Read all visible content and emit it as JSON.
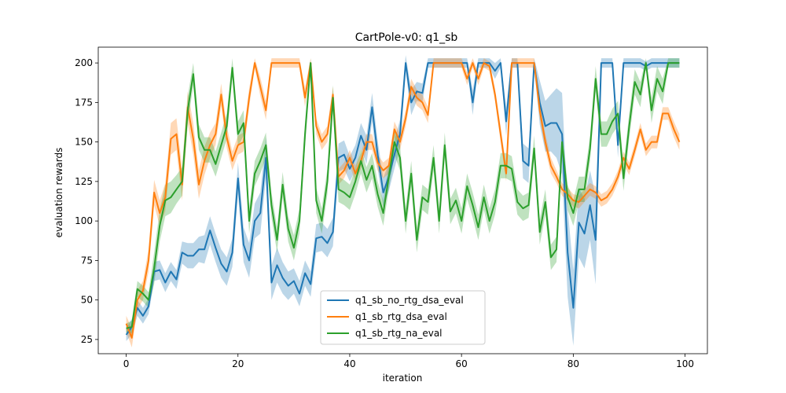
{
  "chart_data": {
    "type": "line",
    "title": "CartPole-v0: q1_sb",
    "xlabel": "iteration",
    "ylabel": "evaluation rewards",
    "xlim": [
      -5,
      104
    ],
    "ylim": [
      16,
      210
    ],
    "xticks": [
      0,
      20,
      40,
      60,
      80,
      100
    ],
    "yticks": [
      25,
      50,
      75,
      100,
      125,
      150,
      175,
      200
    ],
    "grid": false,
    "legend_position": "lower-center",
    "x": [
      0,
      1,
      2,
      3,
      4,
      5,
      6,
      7,
      8,
      9,
      10,
      11,
      12,
      13,
      14,
      15,
      16,
      17,
      18,
      19,
      20,
      21,
      22,
      23,
      24,
      25,
      26,
      27,
      28,
      29,
      30,
      31,
      32,
      33,
      34,
      35,
      36,
      37,
      38,
      39,
      40,
      41,
      42,
      43,
      44,
      45,
      46,
      47,
      48,
      49,
      50,
      51,
      52,
      53,
      54,
      55,
      56,
      57,
      58,
      59,
      60,
      61,
      62,
      63,
      64,
      65,
      66,
      67,
      68,
      69,
      70,
      71,
      72,
      73,
      74,
      75,
      76,
      77,
      78,
      79,
      80,
      81,
      82,
      83,
      84,
      85,
      86,
      87,
      88,
      89,
      90,
      91,
      92,
      93,
      94,
      95,
      96,
      97,
      98,
      99
    ],
    "series": [
      {
        "name": "q1_sb_no_rtg_dsa_eval",
        "color": "#1f77b4",
        "values": [
          28,
          33,
          45,
          40,
          46,
          68,
          69,
          61,
          68,
          63,
          80,
          78,
          78,
          82,
          82,
          94,
          83,
          73,
          68,
          80,
          127,
          85,
          75,
          100,
          105,
          140,
          61,
          72,
          64,
          59,
          62,
          54,
          67,
          60,
          89,
          90,
          86,
          93,
          140,
          142,
          133,
          140,
          154,
          145,
          172,
          142,
          118,
          128,
          142,
          155,
          200,
          175,
          182,
          181,
          200,
          200,
          200,
          200,
          200,
          200,
          200,
          200,
          175,
          200,
          200,
          200,
          195,
          200,
          163,
          200,
          200,
          138,
          135,
          200,
          175,
          160,
          162,
          162,
          155,
          80,
          45,
          99,
          92,
          110,
          88,
          200,
          200,
          200,
          148,
          200,
          200,
          200,
          200,
          198,
          200,
          200,
          200,
          200,
          200,
          200
        ],
        "band": [
          4,
          5,
          5,
          5,
          5,
          6,
          6,
          6,
          6,
          6,
          7,
          8,
          8,
          8,
          9,
          9,
          9,
          9,
          9,
          9,
          10,
          11,
          11,
          11,
          13,
          13,
          11,
          11,
          10,
          9,
          8,
          8,
          8,
          8,
          9,
          9,
          9,
          9,
          9,
          9,
          8,
          8,
          8,
          9,
          9,
          9,
          9,
          9,
          9,
          9,
          5,
          8,
          6,
          6,
          3,
          3,
          3,
          3,
          3,
          3,
          3,
          3,
          8,
          3,
          3,
          3,
          5,
          3,
          9,
          3,
          3,
          11,
          11,
          3,
          14,
          16,
          18,
          22,
          26,
          28,
          24,
          22,
          22,
          22,
          28,
          3,
          3,
          3,
          8,
          3,
          3,
          3,
          3,
          3,
          3,
          3,
          3,
          3,
          3,
          3
        ]
      },
      {
        "name": "q1_sb_rtg_dsa_eval",
        "color": "#ff7f0e",
        "values": [
          35,
          26,
          50,
          56,
          75,
          118,
          105,
          115,
          152,
          155,
          123,
          172,
          152,
          123,
          138,
          148,
          155,
          180,
          153,
          138,
          148,
          150,
          178,
          200,
          185,
          170,
          200,
          200,
          200,
          200,
          200,
          200,
          178,
          200,
          160,
          150,
          155,
          180,
          128,
          132,
          140,
          130,
          138,
          150,
          150,
          137,
          132,
          135,
          158,
          150,
          165,
          185,
          178,
          175,
          167,
          200,
          200,
          200,
          200,
          200,
          200,
          190,
          200,
          190,
          200,
          198,
          180,
          155,
          130,
          200,
          200,
          200,
          200,
          200,
          170,
          150,
          135,
          128,
          120,
          117,
          113,
          112,
          116,
          120,
          118,
          113,
          115,
          120,
          128,
          140,
          133,
          145,
          158,
          145,
          150,
          150,
          168,
          168,
          158,
          150
        ],
        "band": [
          5,
          6,
          6,
          6,
          7,
          8,
          8,
          9,
          10,
          10,
          10,
          10,
          10,
          9,
          9,
          8,
          7,
          7,
          7,
          6,
          6,
          6,
          6,
          3,
          6,
          6,
          3,
          3,
          3,
          3,
          3,
          3,
          6,
          3,
          5,
          5,
          5,
          5,
          5,
          5,
          5,
          5,
          5,
          5,
          5,
          5,
          5,
          5,
          5,
          5,
          5,
          5,
          5,
          5,
          5,
          3,
          3,
          3,
          3,
          3,
          3,
          4,
          3,
          4,
          3,
          3,
          4,
          5,
          5,
          3,
          3,
          3,
          3,
          3,
          5,
          5,
          5,
          4,
          4,
          4,
          4,
          4,
          4,
          4,
          4,
          4,
          4,
          4,
          4,
          4,
          4,
          4,
          4,
          4,
          4,
          4,
          4,
          4,
          5,
          5
        ]
      },
      {
        "name": "q1_sb_rtg_na_eval",
        "color": "#2ca02c",
        "values": [
          32,
          33,
          57,
          54,
          50,
          70,
          97,
          113,
          115,
          120,
          125,
          170,
          193,
          153,
          145,
          145,
          136,
          148,
          160,
          197,
          155,
          162,
          100,
          130,
          138,
          148,
          110,
          88,
          123,
          95,
          83,
          100,
          155,
          200,
          113,
          100,
          125,
          178,
          120,
          118,
          115,
          125,
          138,
          126,
          135,
          117,
          105,
          128,
          150,
          140,
          100,
          130,
          88,
          115,
          112,
          140,
          100,
          148,
          106,
          113,
          100,
          122,
          110,
          96,
          115,
          100,
          112,
          135,
          135,
          133,
          112,
          108,
          110,
          146,
          93,
          112,
          77,
          82,
          150,
          115,
          105,
          120,
          120,
          146,
          190,
          155,
          155,
          163,
          168,
          127,
          160,
          188,
          180,
          200,
          170,
          190,
          182,
          200,
          200,
          200
        ],
        "band": [
          3,
          4,
          5,
          5,
          5,
          10,
          10,
          10,
          10,
          9,
          9,
          9,
          7,
          8,
          8,
          8,
          8,
          8,
          8,
          6,
          8,
          8,
          8,
          8,
          8,
          8,
          8,
          8,
          8,
          8,
          8,
          8,
          8,
          3,
          8,
          8,
          8,
          8,
          8,
          8,
          8,
          8,
          8,
          8,
          8,
          8,
          8,
          8,
          8,
          8,
          8,
          8,
          8,
          8,
          8,
          8,
          8,
          8,
          8,
          8,
          8,
          8,
          8,
          8,
          8,
          8,
          8,
          8,
          8,
          8,
          8,
          8,
          8,
          8,
          8,
          8,
          8,
          8,
          8,
          8,
          8,
          8,
          8,
          8,
          8,
          8,
          8,
          8,
          8,
          8,
          8,
          8,
          8,
          3,
          8,
          8,
          8,
          3,
          3,
          3
        ]
      }
    ]
  }
}
